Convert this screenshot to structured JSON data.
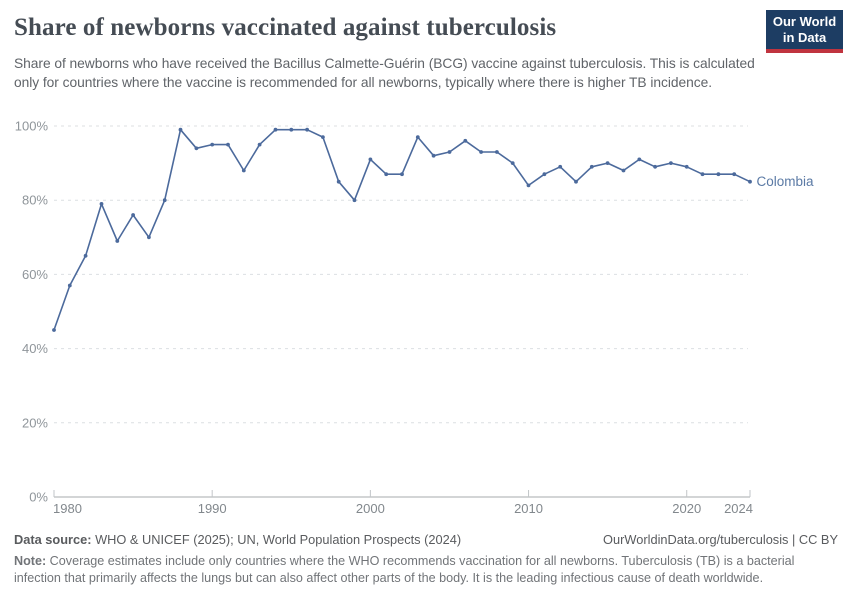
{
  "header": {
    "title": "Share of newborns vaccinated against tuberculosis",
    "subtitle": "Share of newborns who have received the Bacillus Calmette-Guérin (BCG) vaccine against tuberculosis. This is calculated only for countries where the vaccine is recommended for all newborns, typically where there is higher TB incidence.",
    "logo": {
      "line1": "Our World",
      "line2": "in Data",
      "bg_color": "#1d3d63",
      "bar_color": "#c0343f"
    }
  },
  "chart_data": {
    "type": "line",
    "title": "Share of newborns vaccinated against tuberculosis",
    "xlabel": "",
    "ylabel": "",
    "xlim": [
      1980,
      2024
    ],
    "ylim": [
      0,
      100
    ],
    "x_ticks": [
      1980,
      1990,
      2000,
      2010,
      2020,
      2024
    ],
    "y_ticks": [
      0,
      20,
      40,
      60,
      80,
      100
    ],
    "y_tick_suffix": "%",
    "grid": "horizontal-dashed",
    "legend_position": "end-of-line-label",
    "series": [
      {
        "name": "Colombia",
        "color": "#4c6a9c",
        "label_color": "#5b7aa5",
        "x": [
          1980,
          1981,
          1982,
          1983,
          1984,
          1985,
          1986,
          1987,
          1988,
          1989,
          1990,
          1991,
          1992,
          1993,
          1994,
          1995,
          1996,
          1997,
          1998,
          1999,
          2000,
          2001,
          2002,
          2003,
          2004,
          2005,
          2006,
          2007,
          2008,
          2009,
          2010,
          2011,
          2012,
          2013,
          2014,
          2015,
          2016,
          2017,
          2018,
          2019,
          2020,
          2021,
          2022,
          2023,
          2024
        ],
        "values": [
          45,
          57,
          65,
          79,
          69,
          76,
          70,
          80,
          99,
          94,
          95,
          95,
          88,
          95,
          99,
          99,
          99,
          97,
          85,
          80,
          91,
          87,
          87,
          97,
          92,
          93,
          96,
          93,
          93,
          90,
          84,
          87,
          89,
          85,
          89,
          90,
          88,
          91,
          89,
          90,
          89,
          87,
          87,
          87,
          85
        ]
      }
    ]
  },
  "footer": {
    "source_label": "Data source:",
    "source_text": " WHO & UNICEF (2025); UN, World Population Prospects (2024)",
    "link_text": "OurWorldinData.org/tuberculosis | CC BY",
    "note_label": "Note:",
    "note_text": " Coverage estimates include only countries where the WHO recommends vaccination for all newborns. Tuberculosis (TB) is a bacterial infection that primarily affects the lungs but can also affect other parts of the body. It is the leading infectious cause of death worldwide."
  }
}
